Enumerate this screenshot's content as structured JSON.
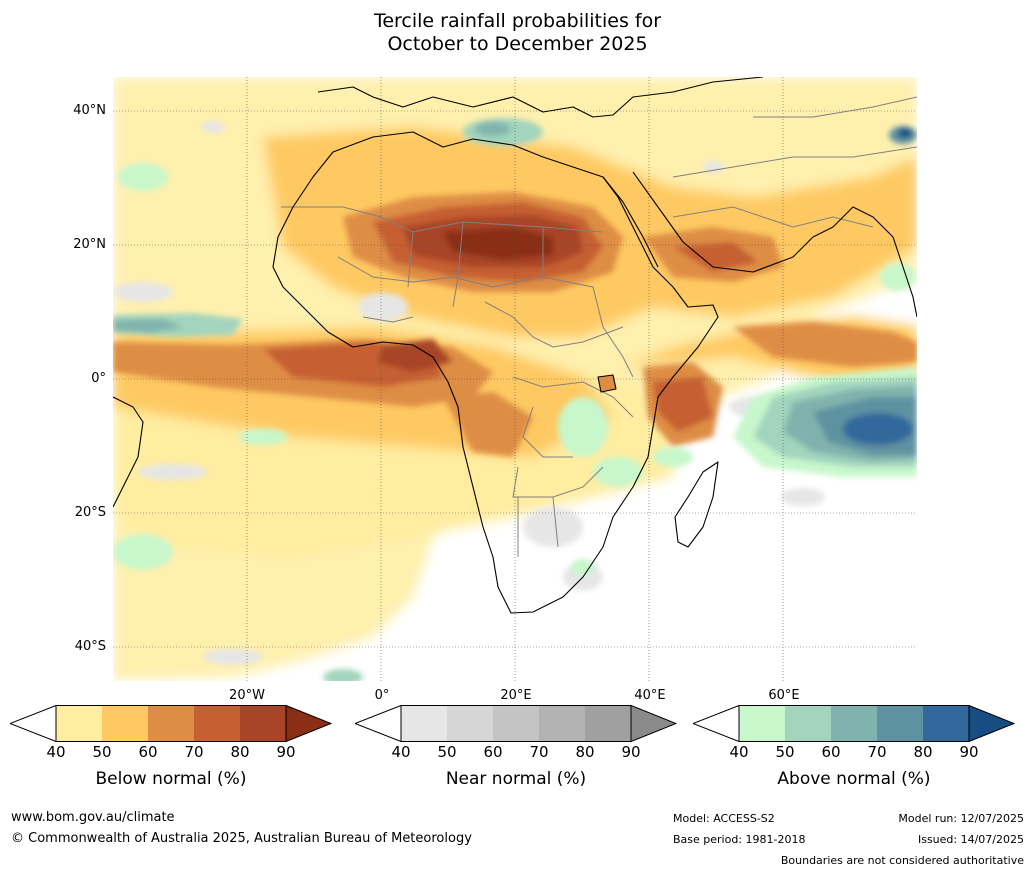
{
  "title": {
    "line1": "Tercile rainfall probabilities for",
    "line2": "October to December 2025"
  },
  "map": {
    "lat_labels": [
      "40°N",
      "20°N",
      "0°",
      "20°S",
      "40°S"
    ],
    "lon_labels": [
      "20°W",
      "0°",
      "20°E",
      "40°E",
      "60°E"
    ],
    "layers": [
      "below-normal",
      "near-normal",
      "above-normal",
      "land",
      "country-boundaries",
      "coastlines",
      "graticule"
    ]
  },
  "colorbars": [
    {
      "title": "Below normal (%)",
      "ticks": [
        "40",
        "50",
        "60",
        "70",
        "80",
        "90"
      ],
      "colors": [
        "#ffffff",
        "#ffeda0",
        "#fec962",
        "#de8d45",
        "#c65f32",
        "#a84428",
        "#8b2e16"
      ]
    },
    {
      "title": "Near normal (%)",
      "ticks": [
        "40",
        "50",
        "60",
        "70",
        "80",
        "90"
      ],
      "colors": [
        "#ffffff",
        "#e6e6e6",
        "#d6d6d6",
        "#c4c4c4",
        "#b3b3b3",
        "#a0a0a0",
        "#8a8a8a"
      ]
    },
    {
      "title": "Above normal (%)",
      "ticks": [
        "40",
        "50",
        "60",
        "70",
        "80",
        "90"
      ],
      "colors": [
        "#ffffff",
        "#c8f7cc",
        "#a3d4bd",
        "#80b3ad",
        "#5e92a1",
        "#33689c",
        "#174d82"
      ]
    }
  ],
  "footer": {
    "website": "www.bom.gov.au/climate",
    "copyright": "© Commonwealth of Australia 2025, Australian Bureau of Meteorology",
    "model": "Model: ACCESS-S2",
    "base_period": "Base period: 1981-2018",
    "model_run": "Model run: 12/07/2025",
    "issued": "Issued: 14/07/2025",
    "disclaimer": "Boundaries are not considered authoritative"
  }
}
